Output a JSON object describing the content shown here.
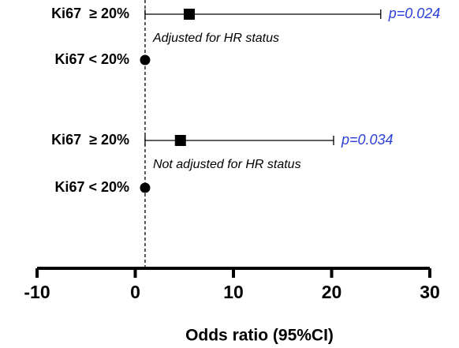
{
  "chart_data": {
    "type": "forest",
    "x_label": "Odds ratio (95%CI)",
    "xlim": [
      -10,
      30
    ],
    "xticks": [
      -10,
      0,
      10,
      20,
      30
    ],
    "reference_line": 1,
    "color": "#000000",
    "p_color": "#2a3fd8",
    "rows": [
      {
        "label": "Ki67  ≥ 20%",
        "value": 5.5,
        "lower": 1.0,
        "upper": 25,
        "p_label": "p=0.024",
        "note": "Adjusted for HR status"
      },
      {
        "label": "Ki67 < 20%",
        "value": 1
      },
      {
        "label": "Ki67  ≥ 20%",
        "value": 4.6,
        "lower": 1.0,
        "upper": 20.2,
        "p_label": "p=0.034",
        "note": "Not adjusted for HR status"
      },
      {
        "label": "Ki67 < 20%",
        "value": 1
      }
    ]
  }
}
